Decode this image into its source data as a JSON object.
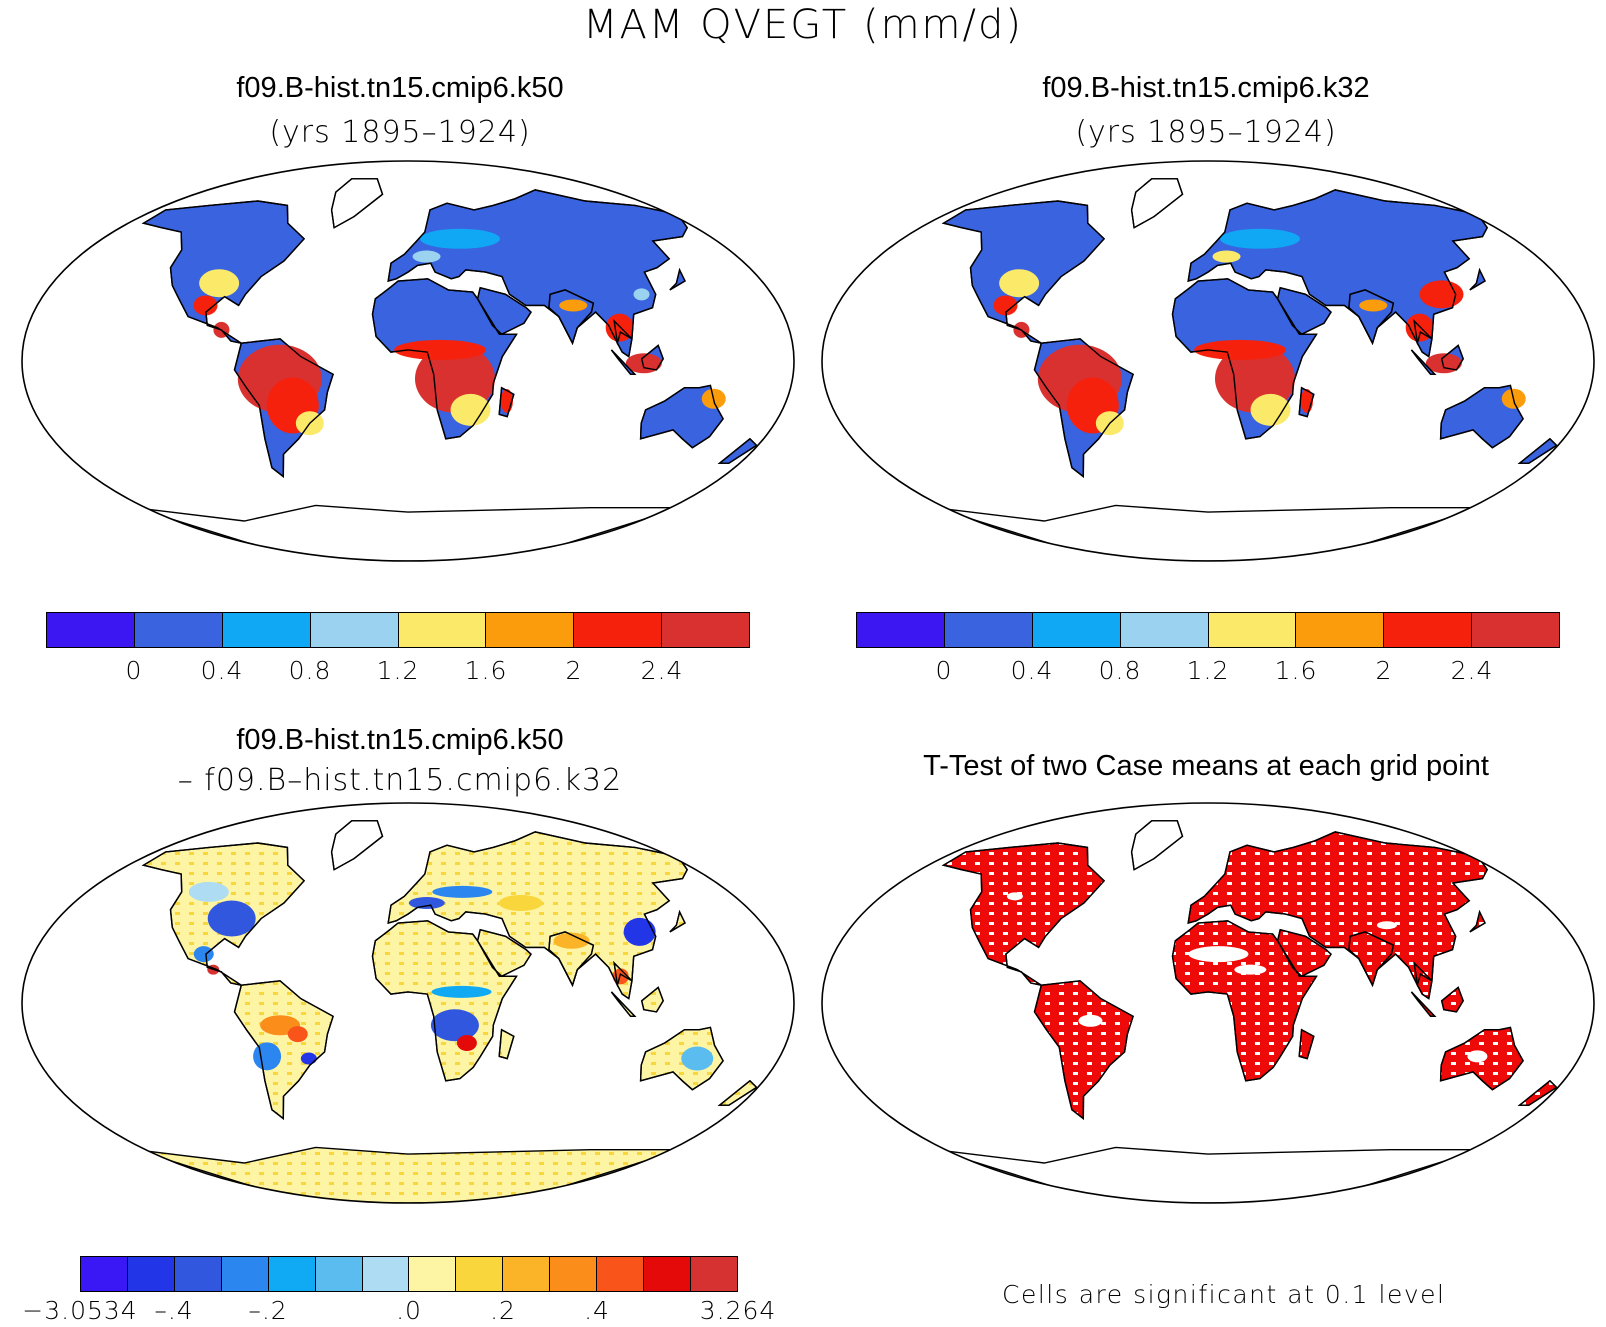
{
  "figure_title": "MAM QVEGT (mm/d)",
  "panels": {
    "top_left": {
      "title": "f09.B-hist.tn15.cmip6.k50",
      "subtitle": "(yrs 1895–1924)"
    },
    "top_right": {
      "title": "f09.B-hist.tn15.cmip6.k32",
      "subtitle": "(yrs 1895–1924)"
    },
    "bottom_left": {
      "title": "f09.B-hist.tn15.cmip6.k50",
      "subtitle": "– f09.B–hist.tn15.cmip6.k32"
    },
    "bottom_right": {
      "title": "T-Test of two Case means at each grid point",
      "note": "Cells are significant at 0.1 level"
    }
  },
  "colorbars": {
    "mean": {
      "colors": [
        "#3d17f2",
        "#3a63e0",
        "#10a8f5",
        "#9ad2ef",
        "#fbe96a",
        "#fb9c0c",
        "#f6210d",
        "#d93030"
      ],
      "labels": [
        "0",
        "0.4",
        "0.8",
        "1.2",
        "1.6",
        "2",
        "2.4"
      ]
    },
    "diff": {
      "colors": [
        "#3a17f5",
        "#2236e8",
        "#3257df",
        "#2b86f0",
        "#10aaf4",
        "#5bbcef",
        "#addcf3",
        "#fdf5a4",
        "#f9d63b",
        "#fbb427",
        "#fb8d1a",
        "#f9541a",
        "#e40a0a",
        "#d63232"
      ],
      "labels": [
        "−3.0534",
        "–.4",
        "–.2",
        ".0",
        ".2",
        ".4",
        "3.264"
      ]
    }
  },
  "map_colors": {
    "land_low": "#3a63e0",
    "land_mid": "#fb9c0c",
    "land_high": "#d93030",
    "diff_neutral": "#fdf5a4",
    "diff_neg": "#2236e8",
    "diff_pos": "#f9541a",
    "significant": "#ef0a0a"
  }
}
